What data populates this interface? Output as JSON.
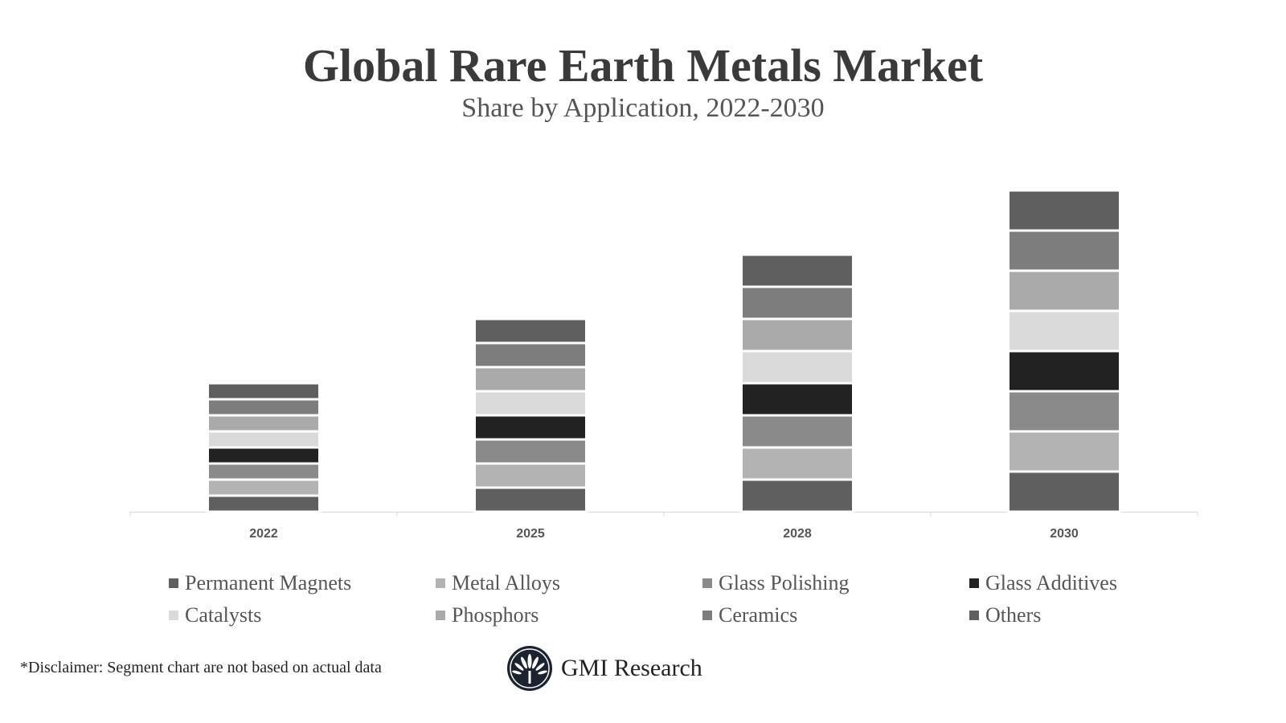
{
  "title": "Global Rare Earth Metals Market",
  "subtitle": "Share by Application, 2022-2030",
  "disclaimer": "*Disclaimer:  Segment chart are not based on actual data",
  "logo_text": "GMI Research",
  "chart_data": {
    "type": "bar",
    "stacked": true,
    "title": "Global Rare Earth Metals Market",
    "subtitle": "Share by Application, 2022-2030",
    "xlabel": "",
    "ylabel": "",
    "y_axis_visible": false,
    "grid": false,
    "legend_placement": "bottom",
    "categories": [
      "2022",
      "2025",
      "2028",
      "2030"
    ],
    "series": [
      {
        "name": "Permanent Magnets",
        "color": "#5f5f5f",
        "values": [
          20,
          30,
          40,
          50
        ]
      },
      {
        "name": "Metal Alloys",
        "color": "#b3b3b3",
        "values": [
          20,
          30,
          40,
          50
        ]
      },
      {
        "name": "Glass Polishing",
        "color": "#8a8a8a",
        "values": [
          20,
          30,
          40,
          50
        ]
      },
      {
        "name": "Glass Additives",
        "color": "#222222",
        "values": [
          20,
          30,
          40,
          50
        ]
      },
      {
        "name": "Catalysts",
        "color": "#dadada",
        "values": [
          20,
          30,
          40,
          50
        ]
      },
      {
        "name": "Phosphors",
        "color": "#aaaaaa",
        "values": [
          20,
          30,
          40,
          50
        ]
      },
      {
        "name": "Ceramics",
        "color": "#7d7d7d",
        "values": [
          20,
          30,
          40,
          50
        ]
      },
      {
        "name": "Others",
        "color": "#5f5f5f",
        "values": [
          20,
          30,
          40,
          50
        ]
      }
    ]
  }
}
